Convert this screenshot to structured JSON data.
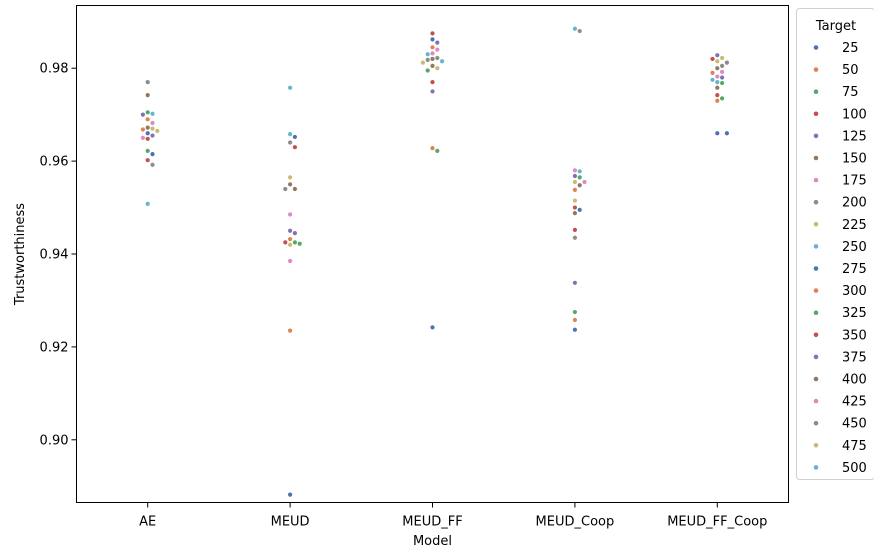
{
  "chart_data": {
    "type": "scatter",
    "style": "swarm",
    "xlabel": "Model",
    "ylabel": "Trustworthiness",
    "categories": [
      "AE",
      "MEUD",
      "MEUD_FF",
      "MEUD_Coop",
      "MEUD_FF_Coop"
    ],
    "ylim": [
      0.8865,
      0.9935
    ],
    "yticks": [
      0.9,
      0.92,
      0.94,
      0.96,
      0.98
    ],
    "ytick_labels": [
      "0.90",
      "0.92",
      "0.94",
      "0.96",
      "0.98"
    ],
    "grid": false,
    "legend": {
      "title": "Target",
      "placement": "outside-right",
      "entries": [
        {
          "label": "25",
          "color": "#4c72b0"
        },
        {
          "label": "50",
          "color": "#dd8452"
        },
        {
          "label": "75",
          "color": "#55a868"
        },
        {
          "label": "100",
          "color": "#c44e52"
        },
        {
          "label": "125",
          "color": "#8172b3"
        },
        {
          "label": "150",
          "color": "#937860"
        },
        {
          "label": "175",
          "color": "#da8bc3"
        },
        {
          "label": "200",
          "color": "#8c8c8c"
        },
        {
          "label": "225",
          "color": "#ccb974"
        },
        {
          "label": "250",
          "color": "#64b5cd"
        },
        {
          "label": "275",
          "color": "#4c72b0"
        },
        {
          "label": "300",
          "color": "#dd8452"
        },
        {
          "label": "325",
          "color": "#55a868"
        },
        {
          "label": "350",
          "color": "#c44e52"
        },
        {
          "label": "375",
          "color": "#8172b3"
        },
        {
          "label": "400",
          "color": "#937860"
        },
        {
          "label": "425",
          "color": "#da8bc3"
        },
        {
          "label": "450",
          "color": "#8c8c8c"
        },
        {
          "label": "475",
          "color": "#ccb974"
        },
        {
          "label": "500",
          "color": "#64b5cd"
        }
      ]
    },
    "points": [
      {
        "model": "AE",
        "target": "25",
        "y": 0.9615
      },
      {
        "model": "AE",
        "target": "50",
        "y": 0.9668
      },
      {
        "model": "AE",
        "target": "75",
        "y": 0.9705
      },
      {
        "model": "AE",
        "target": "100",
        "y": 0.9648
      },
      {
        "model": "AE",
        "target": "125",
        "y": 0.97
      },
      {
        "model": "AE",
        "target": "150",
        "y": 0.9742
      },
      {
        "model": "AE",
        "target": "175",
        "y": 0.9682
      },
      {
        "model": "AE",
        "target": "200",
        "y": 0.977
      },
      {
        "model": "AE",
        "target": "225",
        "y": 0.967
      },
      {
        "model": "AE",
        "target": "250",
        "y": 0.9508
      },
      {
        "model": "AE",
        "target": "275",
        "y": 0.966
      },
      {
        "model": "AE",
        "target": "300",
        "y": 0.969
      },
      {
        "model": "AE",
        "target": "325",
        "y": 0.9622
      },
      {
        "model": "AE",
        "target": "350",
        "y": 0.9602
      },
      {
        "model": "AE",
        "target": "375",
        "y": 0.9655
      },
      {
        "model": "AE",
        "target": "400",
        "y": 0.9672
      },
      {
        "model": "AE",
        "target": "425",
        "y": 0.965
      },
      {
        "model": "AE",
        "target": "450",
        "y": 0.9592
      },
      {
        "model": "AE",
        "target": "475",
        "y": 0.9665
      },
      {
        "model": "AE",
        "target": "500",
        "y": 0.9702
      },
      {
        "model": "MEUD",
        "target": "25",
        "y": 0.8882
      },
      {
        "model": "MEUD",
        "target": "50",
        "y": 0.9235
      },
      {
        "model": "MEUD",
        "target": "75",
        "y": 0.9422
      },
      {
        "model": "MEUD",
        "target": "100",
        "y": 0.963
      },
      {
        "model": "MEUD",
        "target": "125",
        "y": 0.945
      },
      {
        "model": "MEUD",
        "target": "150",
        "y": 0.954
      },
      {
        "model": "MEUD",
        "target": "175",
        "y": 0.9485
      },
      {
        "model": "MEUD",
        "target": "200",
        "y": 0.964
      },
      {
        "model": "MEUD",
        "target": "225",
        "y": 0.9565
      },
      {
        "model": "MEUD",
        "target": "250",
        "y": 0.9758
      },
      {
        "model": "MEUD",
        "target": "275",
        "y": 0.9652
      },
      {
        "model": "MEUD",
        "target": "300",
        "y": 0.9432
      },
      {
        "model": "MEUD",
        "target": "325",
        "y": 0.9425
      },
      {
        "model": "MEUD",
        "target": "350",
        "y": 0.9425
      },
      {
        "model": "MEUD",
        "target": "375",
        "y": 0.9445
      },
      {
        "model": "MEUD",
        "target": "400",
        "y": 0.955
      },
      {
        "model": "MEUD",
        "target": "425",
        "y": 0.9385
      },
      {
        "model": "MEUD",
        "target": "450",
        "y": 0.954
      },
      {
        "model": "MEUD",
        "target": "475",
        "y": 0.942
      },
      {
        "model": "MEUD",
        "target": "500",
        "y": 0.9658
      },
      {
        "model": "MEUD_FF",
        "target": "25",
        "y": 0.9242
      },
      {
        "model": "MEUD_FF",
        "target": "50",
        "y": 0.9628
      },
      {
        "model": "MEUD_FF",
        "target": "75",
        "y": 0.9622
      },
      {
        "model": "MEUD_FF",
        "target": "100",
        "y": 0.9875
      },
      {
        "model": "MEUD_FF",
        "target": "125",
        "y": 0.975
      },
      {
        "model": "MEUD_FF",
        "target": "150",
        "y": 0.9805
      },
      {
        "model": "MEUD_FF",
        "target": "175",
        "y": 0.984
      },
      {
        "model": "MEUD_FF",
        "target": "200",
        "y": 0.9818
      },
      {
        "model": "MEUD_FF",
        "target": "225",
        "y": 0.9812
      },
      {
        "model": "MEUD_FF",
        "target": "250",
        "y": 0.983
      },
      {
        "model": "MEUD_FF",
        "target": "275",
        "y": 0.9862
      },
      {
        "model": "MEUD_FF",
        "target": "300",
        "y": 0.9845
      },
      {
        "model": "MEUD_FF",
        "target": "325",
        "y": 0.9795
      },
      {
        "model": "MEUD_FF",
        "target": "350",
        "y": 0.977
      },
      {
        "model": "MEUD_FF",
        "target": "375",
        "y": 0.9855
      },
      {
        "model": "MEUD_FF",
        "target": "400",
        "y": 0.982
      },
      {
        "model": "MEUD_FF",
        "target": "425",
        "y": 0.9832
      },
      {
        "model": "MEUD_FF",
        "target": "450",
        "y": 0.9822
      },
      {
        "model": "MEUD_FF",
        "target": "475",
        "y": 0.98
      },
      {
        "model": "MEUD_FF",
        "target": "500",
        "y": 0.9815
      },
      {
        "model": "MEUD_Coop",
        "target": "25",
        "y": 0.9237
      },
      {
        "model": "MEUD_Coop",
        "target": "50",
        "y": 0.9258
      },
      {
        "model": "MEUD_Coop",
        "target": "75",
        "y": 0.9275
      },
      {
        "model": "MEUD_Coop",
        "target": "100",
        "y": 0.9452
      },
      {
        "model": "MEUD_Coop",
        "target": "125",
        "y": 0.9338
      },
      {
        "model": "MEUD_Coop",
        "target": "150",
        "y": 0.9548
      },
      {
        "model": "MEUD_Coop",
        "target": "175",
        "y": 0.958
      },
      {
        "model": "MEUD_Coop",
        "target": "200",
        "y": 0.988
      },
      {
        "model": "MEUD_Coop",
        "target": "225",
        "y": 0.9555
      },
      {
        "model": "MEUD_Coop",
        "target": "250",
        "y": 0.9885
      },
      {
        "model": "MEUD_Coop",
        "target": "275",
        "y": 0.9495
      },
      {
        "model": "MEUD_Coop",
        "target": "300",
        "y": 0.9538
      },
      {
        "model": "MEUD_Coop",
        "target": "325",
        "y": 0.9565
      },
      {
        "model": "MEUD_Coop",
        "target": "350",
        "y": 0.95
      },
      {
        "model": "MEUD_Coop",
        "target": "375",
        "y": 0.9568
      },
      {
        "model": "MEUD_Coop",
        "target": "400",
        "y": 0.9488
      },
      {
        "model": "MEUD_Coop",
        "target": "425",
        "y": 0.9555
      },
      {
        "model": "MEUD_Coop",
        "target": "450",
        "y": 0.9435
      },
      {
        "model": "MEUD_Coop",
        "target": "475",
        "y": 0.9515
      },
      {
        "model": "MEUD_Coop",
        "target": "500",
        "y": 0.9578
      },
      {
        "model": "MEUD_FF_Coop",
        "target": "25",
        "y": 0.966
      },
      {
        "model": "MEUD_FF_Coop",
        "target": "50",
        "y": 0.973
      },
      {
        "model": "MEUD_FF_Coop",
        "target": "75",
        "y": 0.9768
      },
      {
        "model": "MEUD_FF_Coop",
        "target": "100",
        "y": 0.982
      },
      {
        "model": "MEUD_FF_Coop",
        "target": "125",
        "y": 0.9828
      },
      {
        "model": "MEUD_FF_Coop",
        "target": "150",
        "y": 0.9758
      },
      {
        "model": "MEUD_FF_Coop",
        "target": "175",
        "y": 0.9782
      },
      {
        "model": "MEUD_FF_Coop",
        "target": "200",
        "y": 0.9805
      },
      {
        "model": "MEUD_FF_Coop",
        "target": "225",
        "y": 0.9822
      },
      {
        "model": "MEUD_FF_Coop",
        "target": "250",
        "y": 0.9775
      },
      {
        "model": "MEUD_FF_Coop",
        "target": "275",
        "y": 0.966
      },
      {
        "model": "MEUD_FF_Coop",
        "target": "300",
        "y": 0.979
      },
      {
        "model": "MEUD_FF_Coop",
        "target": "325",
        "y": 0.9735
      },
      {
        "model": "MEUD_FF_Coop",
        "target": "350",
        "y": 0.9742
      },
      {
        "model": "MEUD_FF_Coop",
        "target": "375",
        "y": 0.978
      },
      {
        "model": "MEUD_FF_Coop",
        "target": "400",
        "y": 0.98
      },
      {
        "model": "MEUD_FF_Coop",
        "target": "425",
        "y": 0.9792
      },
      {
        "model": "MEUD_FF_Coop",
        "target": "450",
        "y": 0.9812
      },
      {
        "model": "MEUD_FF_Coop",
        "target": "475",
        "y": 0.9815
      },
      {
        "model": "MEUD_FF_Coop",
        "target": "500",
        "y": 0.977
      }
    ]
  }
}
